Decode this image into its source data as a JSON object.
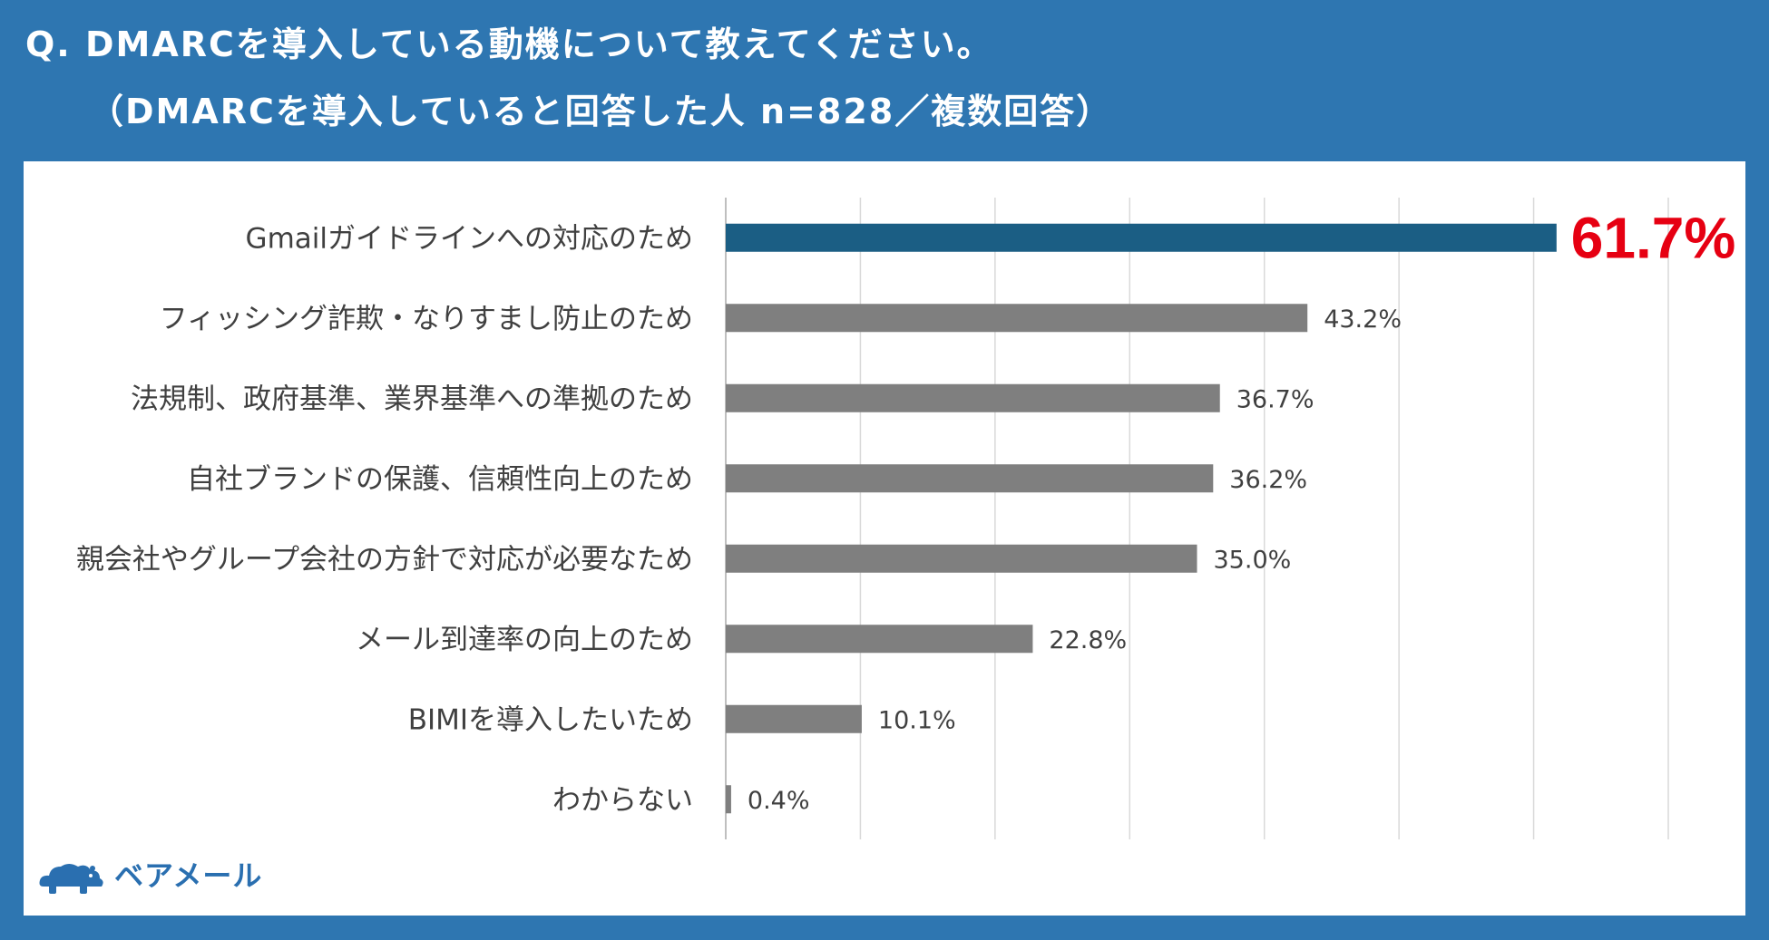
{
  "question": {
    "line1": "Q. DMARCを導入している動機について教えてください。",
    "line2": "（DMARCを導入していると回答した人 n=828／複数回答）"
  },
  "logo": {
    "text": "ベアメール",
    "icon": "bear-cloud-logo-icon"
  },
  "colors": {
    "background": "#2e76b1",
    "highlight_bar": "#1b5e84",
    "bar": "#7f7f7f",
    "highlight_label": "#e60012",
    "grid": "#d9d9d9"
  },
  "chart_data": {
    "type": "bar",
    "orientation": "horizontal",
    "categories": [
      "Gmailガイドラインへの対応のため",
      "フィッシング詐欺・なりすまし防止のため",
      "法規制、政府基準、業界基準への準拠のため",
      "自社ブランドの保護、信頼性向上のため",
      "親会社やグループ会社の方針で対応が必要なため",
      "メール到達率の向上のため",
      "BIMIを導入したいため",
      "わからない"
    ],
    "values": [
      61.7,
      43.2,
      36.7,
      36.2,
      35.0,
      22.8,
      10.1,
      0.4
    ],
    "value_labels": [
      "61.7%",
      "43.2%",
      "36.7%",
      "36.2%",
      "35.0%",
      "22.8%",
      "10.1%",
      "0.4%"
    ],
    "highlight_index": 0,
    "xlim": [
      0,
      70
    ],
    "grid_step": 10,
    "grid": true,
    "unit": "%"
  }
}
